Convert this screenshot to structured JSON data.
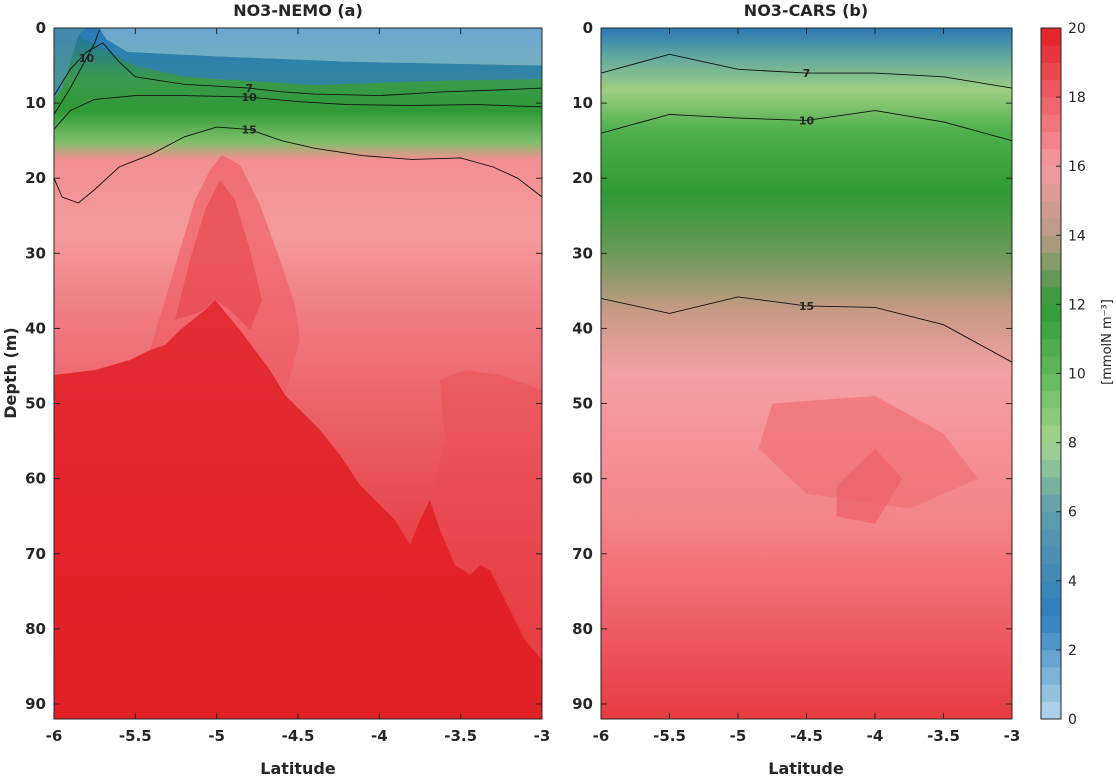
{
  "chart_data": [
    {
      "type": "heatmap",
      "title": "NO3-NEMO (a)",
      "xlabel": "Latitude",
      "ylabel": "Depth (m)",
      "xlim": [
        -6,
        -3
      ],
      "ylim": [
        0,
        92
      ],
      "y_reversed": true,
      "x_ticks": [
        "-6",
        "-5.5",
        "-5",
        "-4.5",
        "-4",
        "-3.5",
        "-3"
      ],
      "y_ticks": [
        "0",
        "10",
        "20",
        "30",
        "40",
        "50",
        "60",
        "70",
        "80",
        "90"
      ],
      "contours": [
        {
          "level": 7,
          "label": "7",
          "points": [
            [
              -6,
              9.0
            ],
            [
              -5.9,
              5.5
            ],
            [
              -5.8,
              3.2
            ],
            [
              -5.7,
              2.0
            ],
            [
              -5.6,
              4.5
            ],
            [
              -5.5,
              6.5
            ],
            [
              -5.2,
              7.5
            ],
            [
              -4.8,
              8.0
            ],
            [
              -4.6,
              8.5
            ],
            [
              -4.4,
              8.8
            ],
            [
              -4.0,
              9.0
            ],
            [
              -3.6,
              8.5
            ],
            [
              -3.2,
              8.2
            ],
            [
              -3.0,
              8.0
            ]
          ]
        },
        {
          "level": 10,
          "label": "10",
          "points": [
            [
              -6,
              11.5
            ],
            [
              -5.9,
              8.0
            ],
            [
              -5.8,
              4.0
            ],
            [
              -5.75,
              2.0
            ],
            [
              -5.72,
              0.2
            ]
          ]
        },
        {
          "level": 10,
          "label": "10",
          "points": [
            [
              -6,
              13.5
            ],
            [
              -5.9,
              11.0
            ],
            [
              -5.75,
              9.5
            ],
            [
              -5.5,
              9.0
            ],
            [
              -5.2,
              9.0
            ],
            [
              -4.8,
              9.2
            ],
            [
              -4.5,
              9.8
            ],
            [
              -4.2,
              10.2
            ],
            [
              -3.8,
              10.3
            ],
            [
              -3.4,
              10.2
            ],
            [
              -3.0,
              10.5
            ]
          ]
        },
        {
          "level": 15,
          "label": "15",
          "points": [
            [
              -6,
              20.0
            ],
            [
              -5.95,
              22.5
            ],
            [
              -5.85,
              23.3
            ],
            [
              -5.75,
              21.5
            ],
            [
              -5.6,
              18.5
            ],
            [
              -5.4,
              16.8
            ],
            [
              -5.2,
              14.5
            ],
            [
              -5.0,
              13.2
            ],
            [
              -4.8,
              13.5
            ],
            [
              -4.6,
              15.0
            ],
            [
              -4.4,
              16.0
            ],
            [
              -4.1,
              17.0
            ],
            [
              -3.8,
              17.5
            ],
            [
              -3.5,
              17.3
            ],
            [
              -3.3,
              18.5
            ],
            [
              -3.15,
              20.0
            ],
            [
              -3.0,
              22.5
            ]
          ]
        }
      ],
      "regions": [
        {
          "value": 1,
          "points": [
            [
              -5.72,
              0
            ],
            [
              -3,
              0
            ],
            [
              -3,
              5
            ],
            [
              -4.2,
              4.5
            ],
            [
              -5.0,
              3.8
            ],
            [
              -5.55,
              3.2
            ],
            [
              -5.68,
              1.5
            ]
          ]
        },
        {
          "value": 3,
          "points": [
            [
              -5.8,
              0
            ],
            [
              -5.72,
              0
            ],
            [
              -5.68,
              1.5
            ],
            [
              -5.55,
              3.2
            ],
            [
              -5.0,
              3.8
            ],
            [
              -4.2,
              4.5
            ],
            [
              -3,
              5
            ],
            [
              -3,
              6.8
            ],
            [
              -3.6,
              7.0
            ],
            [
              -4.4,
              7.6
            ],
            [
              -5.2,
              6.5
            ],
            [
              -5.5,
              5.0
            ],
            [
              -5.7,
              2.8
            ],
            [
              -5.85,
              1.0
            ]
          ]
        },
        {
          "value": 5,
          "points": [
            [
              -6,
              0
            ],
            [
              -5.8,
              0
            ],
            [
              -5.85,
              1.0
            ],
            [
              -5.9,
              4.5
            ],
            [
              -5.95,
              8.0
            ],
            [
              -6,
              9.5
            ]
          ]
        }
      ],
      "colorbar": {
        "min": 0,
        "max": 20,
        "label": "[mmolN m⁻³]"
      }
    },
    {
      "type": "heatmap",
      "title": "NO3-CARS (b)",
      "xlabel": "Latitude",
      "ylabel": "",
      "xlim": [
        -6,
        -3
      ],
      "ylim": [
        0,
        92
      ],
      "y_reversed": true,
      "x_ticks": [
        "-6",
        "-5.5",
        "-5",
        "-4.5",
        "-4",
        "-3.5",
        "-3"
      ],
      "y_ticks": [
        "0",
        "10",
        "20",
        "30",
        "40",
        "50",
        "60",
        "70",
        "80",
        "90"
      ],
      "contours": [
        {
          "level": 7,
          "label": "7",
          "points": [
            [
              -6,
              6.0
            ],
            [
              -5.5,
              3.5
            ],
            [
              -5.0,
              5.5
            ],
            [
              -4.5,
              6.0
            ],
            [
              -4.0,
              6.0
            ],
            [
              -3.5,
              6.5
            ],
            [
              -3.0,
              8.0
            ]
          ]
        },
        {
          "level": 10,
          "label": "10",
          "points": [
            [
              -6,
              14.0
            ],
            [
              -5.5,
              11.5
            ],
            [
              -5.0,
              12.0
            ],
            [
              -4.5,
              12.3
            ],
            [
              -4.0,
              11.0
            ],
            [
              -3.5,
              12.5
            ],
            [
              -3.0,
              15.0
            ]
          ]
        },
        {
          "level": 15,
          "label": "15",
          "points": [
            [
              -6,
              36.0
            ],
            [
              -5.5,
              38.0
            ],
            [
              -5.0,
              35.8
            ],
            [
              -4.5,
              37.0
            ],
            [
              -4.0,
              37.2
            ],
            [
              -3.5,
              39.5
            ],
            [
              -3.0,
              44.5
            ]
          ]
        }
      ],
      "regions": [
        {
          "value": 17.4,
          "points": [
            [
              -4.75,
              50
            ],
            [
              -4.0,
              49
            ],
            [
              -3.5,
              54
            ],
            [
              -3.25,
              60
            ],
            [
              -3.75,
              64
            ],
            [
              -4.5,
              62
            ],
            [
              -4.85,
              56
            ]
          ]
        },
        {
          "value": 17.9,
          "points": [
            [
              -4.28,
              61
            ],
            [
              -4.0,
              56
            ],
            [
              -3.8,
              60
            ],
            [
              -4.0,
              66
            ],
            [
              -4.28,
              65
            ]
          ]
        }
      ],
      "colorbar": {
        "min": 0,
        "max": 20,
        "label": "[mmolN m⁻³]"
      }
    }
  ],
  "colorbar": {
    "min": 0,
    "max": 20,
    "ticks": [
      "0",
      "2",
      "4",
      "6",
      "8",
      "10",
      "12",
      "14",
      "16",
      "18",
      "20"
    ],
    "label": "[mmolN m⁻³]"
  }
}
